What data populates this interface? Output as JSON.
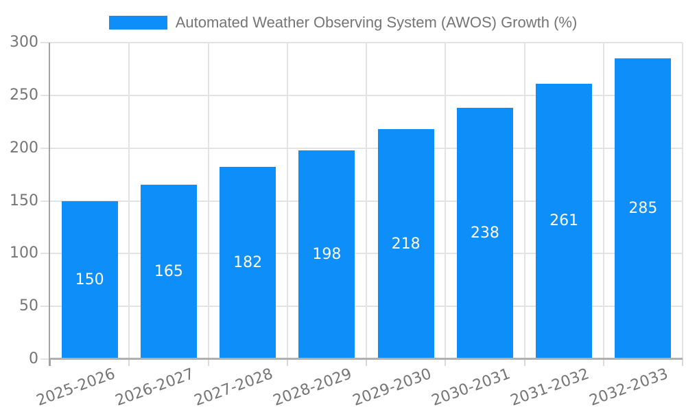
{
  "page": {
    "background": "#ffffff"
  },
  "legend": {
    "position": "top",
    "items": [
      {
        "label": "Automated Weather Observing System (AWOS) Growth (%)",
        "color": "#0d8ef8"
      }
    ]
  },
  "chart_data": {
    "type": "bar",
    "title": "Automated Weather Observing System (AWOS) Growth (%)",
    "categories": [
      "2025-2026",
      "2026-2027",
      "2027-2028",
      "2028-2029",
      "2029-2030",
      "2030-2031",
      "2031-2032",
      "2032-2033"
    ],
    "values": [
      150,
      165,
      182,
      198,
      218,
      238,
      261,
      285
    ],
    "xlabel": "",
    "ylabel": "",
    "ylim": [
      0,
      300
    ],
    "yticks": [
      0,
      50,
      100,
      150,
      200,
      250,
      300
    ],
    "grid": true,
    "legend_position": "top",
    "bar_value_labels_visible": true,
    "x_label_rotation_deg": -20,
    "colors": {
      "bar": "#0d8ef8",
      "bar_label_text": "#ffffff",
      "axis_text": "#757575",
      "gridline": "#e3e3e3",
      "axis_line": "#a3a3a3",
      "baseline": "#b0b0b0",
      "tick": "#d9d9d9",
      "background": "#ffffff"
    }
  }
}
